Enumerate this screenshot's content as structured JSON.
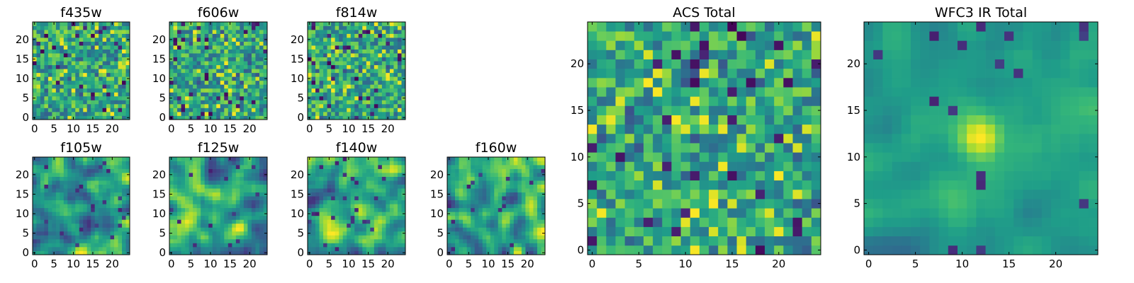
{
  "figure": {
    "colormap": "viridis",
    "colors": {
      "low": "#440154",
      "mid": "#21918c",
      "high": "#fde725"
    }
  },
  "chart_data": [
    {
      "type": "heatmap",
      "title": "f435w",
      "grid": [
        25,
        25
      ],
      "xlim": [
        0,
        24
      ],
      "ylim": [
        0,
        24
      ],
      "xticks": [
        0,
        5,
        10,
        15,
        20
      ],
      "yticks": [
        0,
        5,
        10,
        15,
        20
      ],
      "pattern": "noise",
      "seed": 11
    },
    {
      "type": "heatmap",
      "title": "f606w",
      "grid": [
        25,
        25
      ],
      "xlim": [
        0,
        24
      ],
      "ylim": [
        0,
        24
      ],
      "xticks": [
        0,
        5,
        10,
        15,
        20
      ],
      "yticks": [
        0,
        5,
        10,
        15,
        20
      ],
      "pattern": "noise",
      "seed": 23
    },
    {
      "type": "heatmap",
      "title": "f814w",
      "grid": [
        25,
        25
      ],
      "xlim": [
        0,
        24
      ],
      "ylim": [
        0,
        24
      ],
      "xticks": [
        0,
        5,
        10,
        15,
        20
      ],
      "yticks": [
        0,
        5,
        10,
        15,
        20
      ],
      "pattern": "noise",
      "seed": 37
    },
    {
      "type": "heatmap",
      "title": "f105w",
      "grid": [
        25,
        25
      ],
      "xlim": [
        0,
        24
      ],
      "ylim": [
        0,
        24
      ],
      "xticks": [
        0,
        5,
        10,
        15,
        20
      ],
      "yticks": [
        0,
        5,
        10,
        15,
        20
      ],
      "pattern": "smooth",
      "seed": 41
    },
    {
      "type": "heatmap",
      "title": "f125w",
      "grid": [
        25,
        25
      ],
      "xlim": [
        0,
        24
      ],
      "ylim": [
        0,
        24
      ],
      "xticks": [
        0,
        5,
        10,
        15,
        20
      ],
      "yticks": [
        0,
        5,
        10,
        15,
        20
      ],
      "pattern": "smooth",
      "seed": 53
    },
    {
      "type": "heatmap",
      "title": "f140w",
      "grid": [
        25,
        25
      ],
      "xlim": [
        0,
        24
      ],
      "ylim": [
        0,
        24
      ],
      "xticks": [
        0,
        5,
        10,
        15,
        20
      ],
      "yticks": [
        0,
        5,
        10,
        15,
        20
      ],
      "pattern": "smooth",
      "seed": 67
    },
    {
      "type": "heatmap",
      "title": "f160w",
      "grid": [
        25,
        25
      ],
      "xlim": [
        0,
        24
      ],
      "ylim": [
        0,
        24
      ],
      "xticks": [
        0,
        5,
        10,
        15,
        20
      ],
      "yticks": [
        0,
        5,
        10,
        15,
        20
      ],
      "pattern": "smooth",
      "seed": 79
    },
    {
      "type": "heatmap",
      "title": "ACS Total",
      "grid": [
        25,
        25
      ],
      "xlim": [
        0,
        24
      ],
      "ylim": [
        0,
        24
      ],
      "xticks": [
        0,
        5,
        10,
        15,
        20
      ],
      "yticks": [
        0,
        5,
        10,
        15,
        20
      ],
      "pattern": "noise",
      "seed": 83
    },
    {
      "type": "heatmap",
      "title": "WFC3 IR Total",
      "grid": [
        25,
        25
      ],
      "xlim": [
        0,
        24
      ],
      "ylim": [
        0,
        24
      ],
      "xticks": [
        0,
        5,
        10,
        15,
        20
      ],
      "yticks": [
        0,
        5,
        10,
        15,
        20
      ],
      "pattern": "blob",
      "seed": 97,
      "peak": {
        "x": 12,
        "y": 12
      }
    }
  ]
}
